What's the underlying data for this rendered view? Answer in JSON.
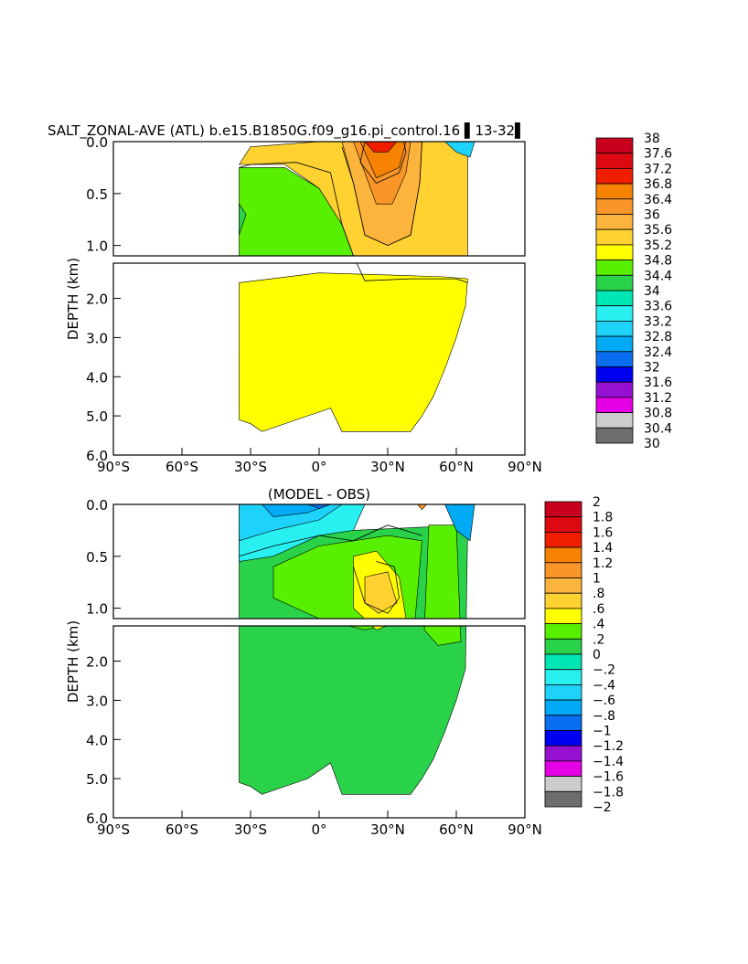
{
  "chart_data": [
    {
      "type": "heatmap",
      "title": "SALT_ZONAL-AVE (ATL) b.e15.B1850G.f09_g16.pi_control.16 ▌13-32▌",
      "xlabel": "",
      "ylabel": "DEPTH (km)",
      "x_ticks": [
        "90°S",
        "60°S",
        "30°S",
        "0°",
        "30°N",
        "60°N",
        "90°N"
      ],
      "y_ticks_upper": [
        "0.0",
        "0.5",
        "1.0"
      ],
      "y_ticks_lower": [
        "2.0",
        "3.0",
        "4.0",
        "5.0",
        "6.0"
      ],
      "xlim": [
        -90,
        90
      ],
      "ylim": [
        6.0,
        0.0
      ],
      "colorbar_labels": [
        "38",
        "37.6",
        "37.2",
        "36.8",
        "36.4",
        "36",
        "35.6",
        "35.2",
        "34.8",
        "34.4",
        "34",
        "33.6",
        "33.2",
        "32.8",
        "32.4",
        "32",
        "31.6",
        "31.2",
        "30.8",
        "30.4",
        "30"
      ],
      "colorbar_colors": [
        "#c8001e",
        "#dc0a10",
        "#f01e00",
        "#f58200",
        "#fa9628",
        "#fcb43c",
        "#ffd232",
        "#ffff00",
        "#58f000",
        "#2ad24a",
        "#00e6b4",
        "#28f0f0",
        "#1ed2fa",
        "#00aaf5",
        "#0a6ef0",
        "#0000f0",
        "#9610d2",
        "#e600e6",
        "#cccccc",
        "#6e6e6e"
      ],
      "series": [
        {
          "name": "34.8",
          "values": [
            [
              -35,
              0.25
            ],
            [
              -30,
              0.22
            ],
            [
              -10,
              0.2
            ],
            [
              5,
              0.3
            ],
            [
              10,
              0.8
            ],
            [
              15,
              1.1
            ],
            [
              20,
              1.55
            ],
            [
              40,
              1.5
            ],
            [
              60,
              1.5
            ],
            [
              65,
              1.6
            ]
          ]
        },
        {
          "name": "35.6",
          "values": [
            [
              10,
              0.05
            ],
            [
              15,
              0.4
            ],
            [
              20,
              0.9
            ],
            [
              30,
              1.0
            ],
            [
              40,
              0.9
            ],
            [
              44,
              0.4
            ],
            [
              45,
              0.0
            ]
          ]
        },
        {
          "name": "36.4",
          "values": [
            [
              20,
              0.0
            ],
            [
              18,
              0.2
            ],
            [
              25,
              0.4
            ],
            [
              35,
              0.3
            ],
            [
              38,
              0.1
            ],
            [
              37,
              0.0
            ]
          ]
        }
      ]
    },
    {
      "type": "heatmap",
      "title": "(MODEL - OBS)",
      "xlabel": "",
      "ylabel": "DEPTH (km)",
      "x_ticks": [
        "90°S",
        "60°S",
        "30°S",
        "0°",
        "30°N",
        "60°N",
        "90°N"
      ],
      "y_ticks_upper": [
        "0.0",
        "0.5",
        "1.0"
      ],
      "y_ticks_lower": [
        "2.0",
        "3.0",
        "4.0",
        "5.0",
        "6.0"
      ],
      "xlim": [
        -90,
        90
      ],
      "ylim": [
        6.0,
        0.0
      ],
      "colorbar_labels": [
        "2",
        "1.8",
        "1.6",
        "1.4",
        "1.2",
        "1",
        ".8",
        ".6",
        ".4",
        ".2",
        "0",
        "−.2",
        "−.4",
        "−.6",
        "−.8",
        "−1",
        "−1.2",
        "−1.4",
        "−1.6",
        "−1.8",
        "−2"
      ],
      "colorbar_colors": [
        "#c8001e",
        "#dc0a10",
        "#f01e00",
        "#f58200",
        "#fa9628",
        "#fcb43c",
        "#ffd232",
        "#ffff00",
        "#58f000",
        "#2ad24a",
        "#00e6b4",
        "#28f0f0",
        "#1ed2fa",
        "#00aaf5",
        "#0a6ef0",
        "#0000f0",
        "#9610d2",
        "#e600e6",
        "#cccccc",
        "#6e6e6e"
      ],
      "series": [
        {
          "name": "0.4",
          "values": [
            [
              -35,
              0.5
            ],
            [
              -20,
              0.4
            ],
            [
              0,
              0.3
            ],
            [
              15,
              0.35
            ],
            [
              30,
              0.2
            ],
            [
              45,
              0.3
            ]
          ]
        },
        {
          "name": "0.6",
          "values": [
            [
              15,
              0.6
            ],
            [
              20,
              0.95
            ],
            [
              30,
              1.05
            ],
            [
              35,
              0.9
            ],
            [
              33,
              0.6
            ],
            [
              25,
              0.55
            ]
          ]
        }
      ]
    }
  ]
}
